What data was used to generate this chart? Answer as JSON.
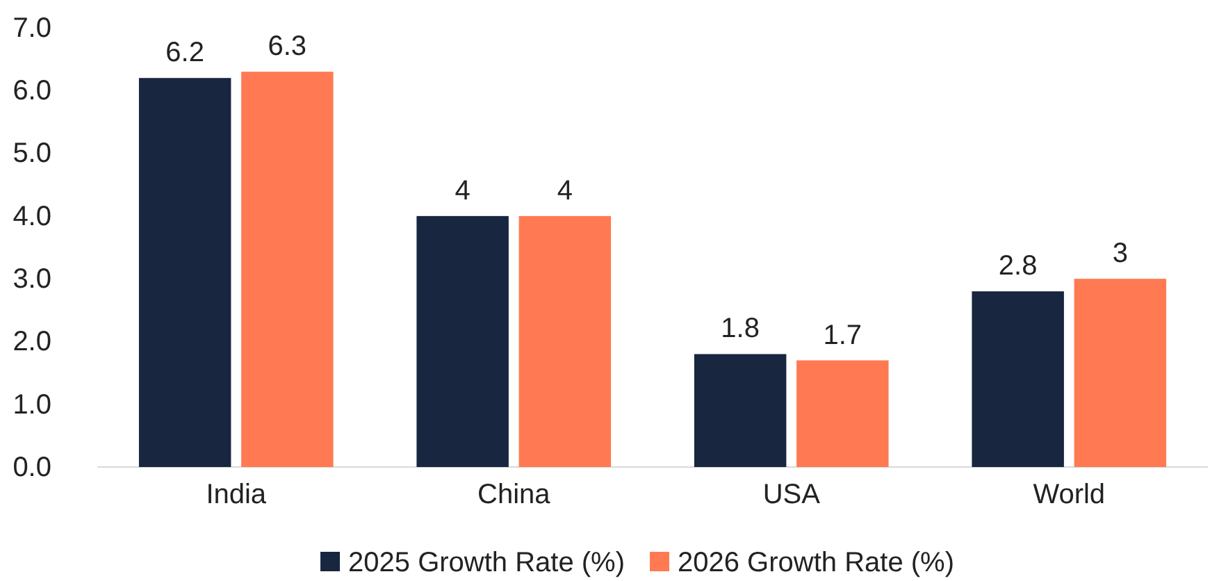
{
  "chart_data": {
    "type": "bar",
    "categories": [
      "India",
      "China",
      "USA",
      "World"
    ],
    "series": [
      {
        "name": "2025 Growth Rate (%)",
        "color": "#18263f",
        "values": [
          6.2,
          4,
          1.8,
          2.8
        ]
      },
      {
        "name": "2026 Growth Rate (%)",
        "color": "#ff7a52",
        "values": [
          6.3,
          4,
          1.7,
          3
        ]
      }
    ],
    "ylim": [
      0,
      7
    ],
    "yticks": [
      {
        "value": 0,
        "label": "0.0"
      },
      {
        "value": 1,
        "label": "1.0"
      },
      {
        "value": 2,
        "label": "2.0"
      },
      {
        "value": 3,
        "label": "3.0"
      },
      {
        "value": 4,
        "label": "4.0"
      },
      {
        "value": 5,
        "label": "5.0"
      },
      {
        "value": 6,
        "label": "6.0"
      },
      {
        "value": 7,
        "label": "7.0"
      }
    ],
    "data_labels": true,
    "grid": false,
    "legend": "bottom"
  }
}
